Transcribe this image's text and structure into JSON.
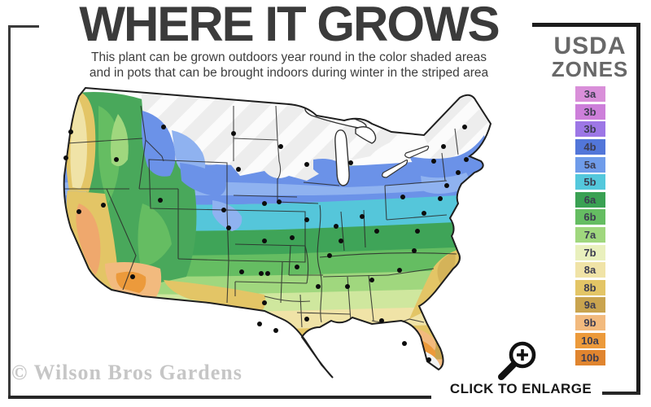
{
  "header": {
    "title": "WHERE IT GROWS",
    "subtitle_line1": "This plant can be grown outdoors year round in the color shaded areas",
    "subtitle_line2": "and in pots that can be brought indoors during winter in the striped area"
  },
  "legend": {
    "title_line1": "USDA",
    "title_line2": "ZONES",
    "zones": [
      {
        "label": "3a",
        "color": "#d98fd9"
      },
      {
        "label": "3b",
        "color": "#cd7fda"
      },
      {
        "label": "3b",
        "color": "#9d77e6"
      },
      {
        "label": "4b",
        "color": "#5276d9"
      },
      {
        "label": "5a",
        "color": "#6f9cea"
      },
      {
        "label": "5b",
        "color": "#54c8dc"
      },
      {
        "label": "6a",
        "color": "#3aa153"
      },
      {
        "label": "6b",
        "color": "#65bd62"
      },
      {
        "label": "7a",
        "color": "#a0d77e"
      },
      {
        "label": "7b",
        "color": "#e9f0bd"
      },
      {
        "label": "8a",
        "color": "#f0e3a7"
      },
      {
        "label": "8b",
        "color": "#e3c566"
      },
      {
        "label": "9a",
        "color": "#c9a44f"
      },
      {
        "label": "9b",
        "color": "#f2ba7e"
      },
      {
        "label": "10a",
        "color": "#ec9a3b"
      },
      {
        "label": "10b",
        "color": "#e0852f"
      }
    ]
  },
  "map": {
    "city_dots": [
      [
        62,
        62
      ],
      [
        56,
        94
      ],
      [
        118,
        96
      ],
      [
        176,
        56
      ],
      [
        262,
        64
      ],
      [
        268,
        108
      ],
      [
        320,
        80
      ],
      [
        352,
        102
      ],
      [
        406,
        100
      ],
      [
        508,
        98
      ],
      [
        520,
        80
      ],
      [
        546,
        56
      ],
      [
        548,
        96
      ],
      [
        538,
        112
      ],
      [
        524,
        128
      ],
      [
        72,
        160
      ],
      [
        102,
        152
      ],
      [
        172,
        146
      ],
      [
        250,
        158
      ],
      [
        256,
        180
      ],
      [
        300,
        150
      ],
      [
        318,
        148
      ],
      [
        352,
        170
      ],
      [
        388,
        178
      ],
      [
        420,
        166
      ],
      [
        470,
        142
      ],
      [
        516,
        144
      ],
      [
        496,
        162
      ],
      [
        438,
        184
      ],
      [
        488,
        184
      ],
      [
        334,
        192
      ],
      [
        300,
        196
      ],
      [
        394,
        196
      ],
      [
        380,
        214
      ],
      [
        340,
        228
      ],
      [
        272,
        234
      ],
      [
        296,
        236
      ],
      [
        304,
        236
      ],
      [
        138,
        240
      ],
      [
        484,
        208
      ],
      [
        466,
        232
      ],
      [
        432,
        244
      ],
      [
        402,
        252
      ],
      [
        366,
        252
      ],
      [
        352,
        292
      ],
      [
        300,
        272
      ],
      [
        294,
        298
      ],
      [
        314,
        306
      ],
      [
        444,
        294
      ],
      [
        472,
        322
      ],
      [
        502,
        342
      ]
    ]
  },
  "footer": {
    "watermark": "© Wilson Bros Gardens",
    "enlarge_label": "CLICK TO ENLARGE"
  }
}
